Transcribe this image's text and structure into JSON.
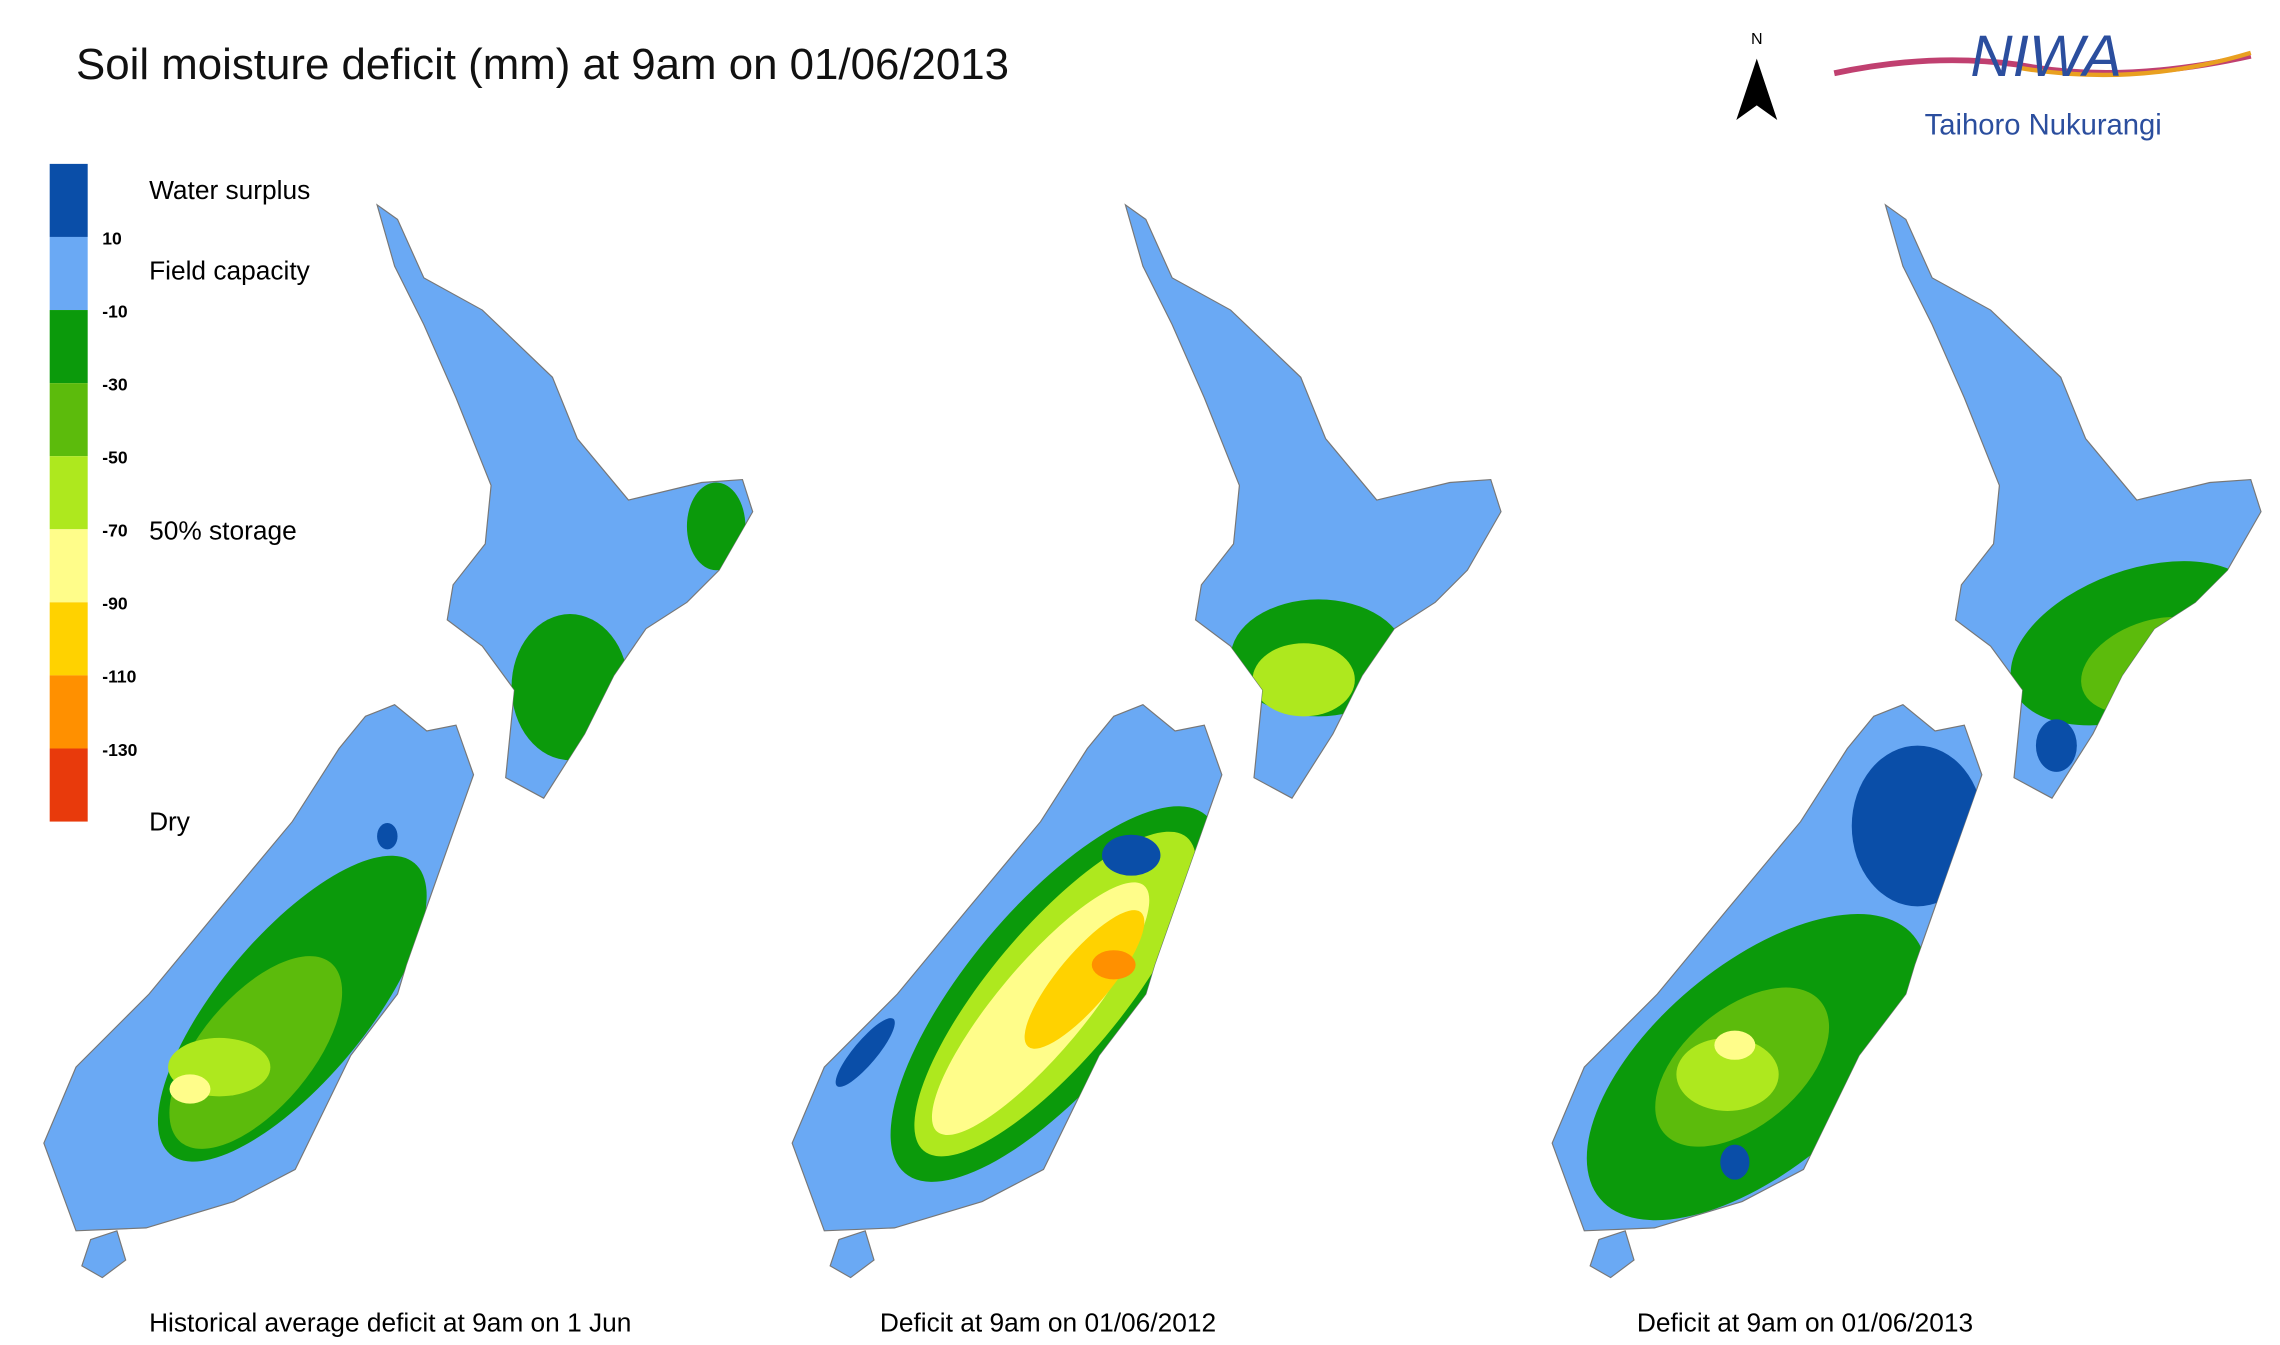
{
  "title": "Soil moisture deficit (mm) at  9am on 01/06/2013",
  "north_label": "N",
  "logo": {
    "name": "NIWA",
    "subtitle": "Taihoro Nukurangi"
  },
  "legend": {
    "colors": [
      "#0a4ea8",
      "#6aa9f4",
      "#0b9a0b",
      "#5cbb0c",
      "#aee81e",
      "#fffd8a",
      "#ffd200",
      "#ff9000",
      "#e83a0c"
    ],
    "ticks": [
      10,
      -10,
      -30,
      -50,
      -70,
      -90,
      -110,
      -130
    ],
    "labels": [
      "Water surplus",
      "Field capacity",
      "50% storage",
      "Dry"
    ]
  },
  "maps": [
    {
      "caption": "Historical average deficit at 9am on 1 Jun"
    },
    {
      "caption": "Deficit at  9am on 01/06/2012"
    },
    {
      "caption": "Deficit at  9am on 01/06/2013"
    }
  ]
}
